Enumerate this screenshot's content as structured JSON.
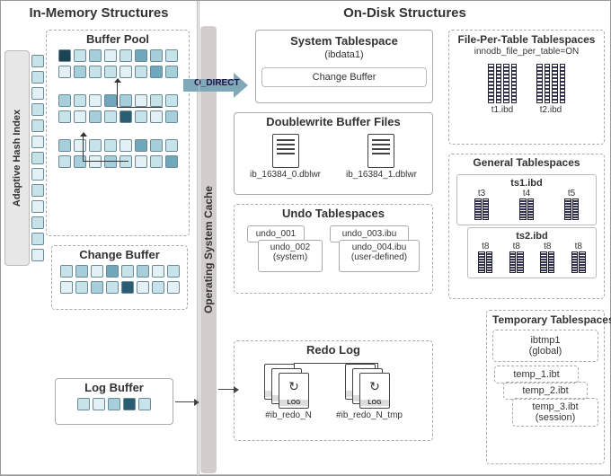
{
  "colors": {
    "cell_border": "#6b8a99",
    "shades": [
      "#e4f1f4",
      "#c7e3ea",
      "#a6cfdb",
      "#6fa8ba",
      "#2b5e73",
      "#1d4455"
    ],
    "os_cache_bg": "#d3cecc",
    "arrow": "#7fa8b8"
  },
  "headers": {
    "left": "In-Memory Structures",
    "right": "On-Disk Structures"
  },
  "os_cache": "Operating System Cache",
  "o_direct": "O_DIRECT",
  "adaptive_hash": {
    "label": "Adaptive Hash Index",
    "cell_shades": [
      1,
      1,
      0,
      1,
      1,
      0,
      1,
      0,
      1,
      0,
      1,
      1,
      0
    ]
  },
  "buffer_pool": {
    "title": "Buffer Pool",
    "rows": [
      [
        5,
        1,
        2,
        0,
        1,
        3,
        2,
        1
      ],
      [
        0,
        2,
        1,
        1,
        0,
        1,
        3,
        2
      ],
      [
        2,
        1,
        0,
        3,
        2,
        0,
        1,
        1
      ],
      [
        1,
        0,
        2,
        1,
        4,
        1,
        0,
        2
      ],
      [
        2,
        0,
        1,
        1,
        0,
        3,
        2,
        1
      ],
      [
        1,
        2,
        0,
        2,
        1,
        0,
        1,
        3
      ]
    ]
  },
  "change_buffer_mem": {
    "title": "Change Buffer",
    "rows": [
      [
        1,
        2,
        0,
        3,
        1,
        2,
        0,
        1
      ],
      [
        0,
        1,
        2,
        1,
        4,
        0,
        1,
        0
      ]
    ]
  },
  "log_buffer": {
    "title": "Log Buffer",
    "row": [
      1,
      0,
      2,
      4,
      1
    ]
  },
  "system_tablespace": {
    "title": "System Tablespace",
    "subtitle": "(ibdata1)",
    "inner": "Change Buffer"
  },
  "doublewrite": {
    "title": "Doublewrite Buffer Files",
    "files": [
      "ib_16384_0.dblwr",
      "ib_16384_1.dblwr"
    ]
  },
  "undo": {
    "title": "Undo Tablespaces",
    "left": {
      "a": "undo_001",
      "b": "undo_002",
      "sys": "(system)"
    },
    "right": {
      "a": "undo_003.ibu",
      "b": "undo_004.ibu",
      "usr": "(user-defined)"
    }
  },
  "redo": {
    "title": "Redo Log",
    "files": [
      "#ib_redo_N",
      "#ib_redo_N_tmp"
    ]
  },
  "fpt": {
    "title": "File-Per-Table Tablespaces",
    "note": "innodb_file_per_table=ON",
    "files": [
      "t1.ibd",
      "t2.ibd"
    ]
  },
  "general": {
    "title": "General Tablespaces",
    "ts1": {
      "name": "ts1.ibd",
      "cols": [
        "t3",
        "t4",
        "t5"
      ]
    },
    "ts2": {
      "name": "ts2.ibd",
      "cols": [
        "t8",
        "t8",
        "t8",
        "t8"
      ]
    }
  },
  "temp": {
    "title": "Temporary Tablespaces",
    "global": {
      "name": "ibtmp1",
      "tag": "(global)"
    },
    "sessions": [
      "temp_1.ibt",
      "temp_2.ibt",
      "temp_3.ibt"
    ],
    "sess_tag": "(session)"
  }
}
